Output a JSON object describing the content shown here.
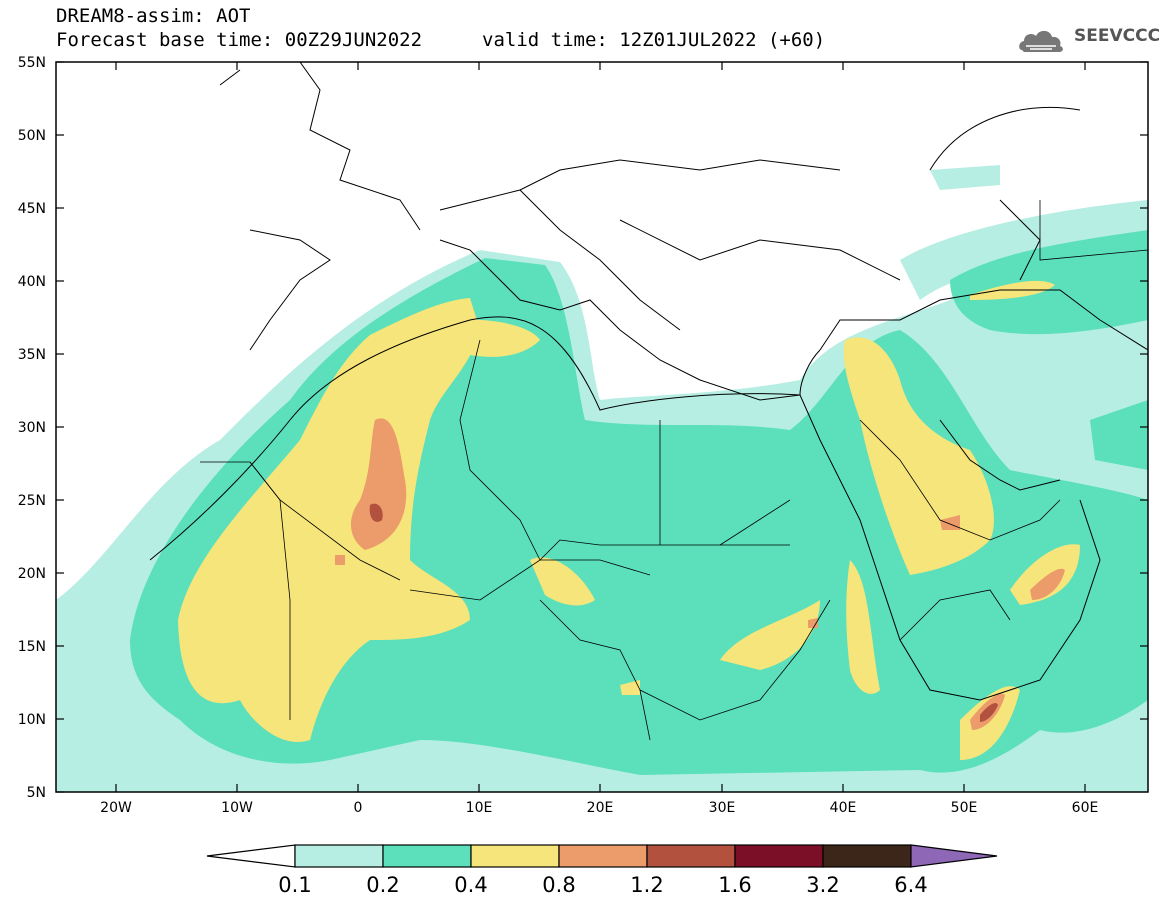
{
  "header": {
    "product": "DREAM8-assim: AOT",
    "base_time": "Forecast base time: 00Z29JUN2022",
    "valid_time": "valid time: 12Z01JUL2022 (+60)"
  },
  "logo": {
    "text": "SEEVCCC",
    "icon": "cloud-logo-icon"
  },
  "map": {
    "lon_range": [
      -25,
      65
    ],
    "lat_range": [
      5,
      55
    ],
    "lat_ticks": [
      "55N",
      "50N",
      "45N",
      "40N",
      "35N",
      "30N",
      "25N",
      "20N",
      "15N",
      "10N",
      "5N"
    ],
    "lon_ticks": [
      "20W",
      "10W",
      "0",
      "10E",
      "20E",
      "30E",
      "40E",
      "50E",
      "60E"
    ],
    "variable": "AOT"
  },
  "legend": {
    "labels": [
      "0.1",
      "0.2",
      "0.4",
      "0.8",
      "1.2",
      "1.6",
      "3.2",
      "6.4"
    ],
    "colors": [
      "#ffffff",
      "#b7eee3",
      "#5be0bb",
      "#f6e57a",
      "#ec9b6b",
      "#b2513e",
      "#7a0f27",
      "#3c2619",
      "#8e67b6"
    ]
  }
}
